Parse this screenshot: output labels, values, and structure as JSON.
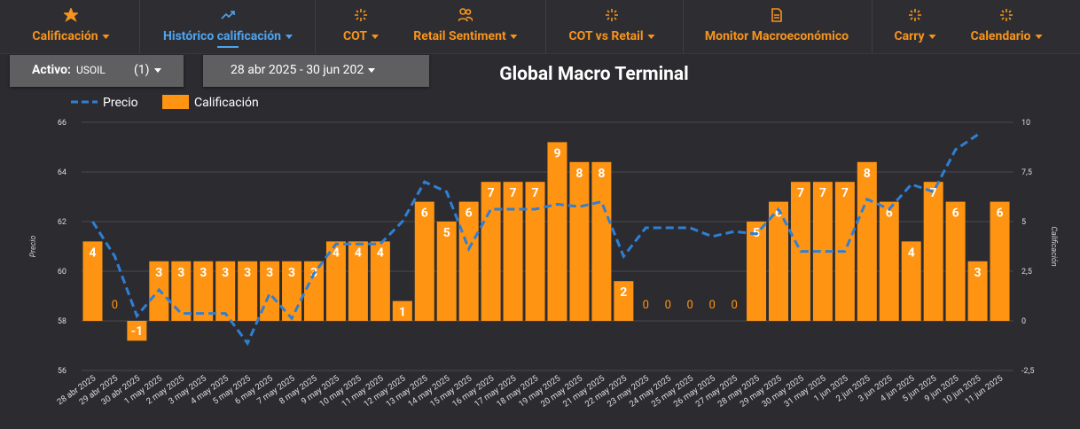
{
  "nav": {
    "items": [
      "Calificación",
      "Histórico calificación",
      "COT",
      "Retail Sentiment",
      "COT vs Retail",
      "Monitor Macroeconómico",
      "Carry",
      "Calendario"
    ]
  },
  "controls": {
    "asset_label": "Activo:",
    "asset": "USOIL",
    "count": "(1)",
    "date_range": "28 abr 2025 - 30 jun 202"
  },
  "chart_data": {
    "type": "combo",
    "title": "Global Macro Terminal",
    "y_label": "Precio",
    "y2_label": "Calificación",
    "categories": [
      "28 abr 2025",
      "29 abr 2025",
      "30 abr 2025",
      "1 may 2025",
      "2 may 2025",
      "3 may 2025",
      "4 may 2025",
      "5 may 2025",
      "6 may 2025",
      "7 may 2025",
      "8 may 2025",
      "9 may 2025",
      "10 may 2025",
      "11 may 2025",
      "12 may 2025",
      "13 may 2025",
      "14 may 2025",
      "15 may 2025",
      "16 may 2025",
      "17 may 2025",
      "18 may 2025",
      "19 may 2025",
      "20 may 2025",
      "21 may 2025",
      "22 may 2025",
      "23 may 2025",
      "24 may 2025",
      "25 may 2025",
      "26 may 2025",
      "27 may 2025",
      "28 may 2025",
      "29 may 2025",
      "30 may 2025",
      "31 may 2025",
      "1 jun 2025",
      "2 jun 2025",
      "3 jun 2025",
      "4 jun 2025",
      "5 jun 2025",
      "9 jun 2025",
      "10 jun 2025",
      "11 jun 2025"
    ],
    "series": [
      {
        "name": "Precio",
        "type": "line",
        "color": "#2f7fd6",
        "values": [
          62.0,
          60.6,
          58.2,
          59.25,
          58.3,
          58.3,
          58.3,
          57.1,
          59.1,
          58.1,
          59.9,
          61.1,
          61.1,
          61.1,
          62.0,
          63.6,
          63.2,
          60.9,
          62.5,
          62.5,
          62.5,
          62.7,
          62.6,
          62.8,
          60.6,
          61.75,
          61.75,
          61.75,
          61.4,
          61.6,
          61.5,
          62.5,
          60.8,
          60.8,
          60.8,
          62.9,
          62.5,
          63.5,
          63.2,
          64.9,
          65.5,
          null
        ]
      },
      {
        "name": "Calificación",
        "type": "bar",
        "axis": "y2",
        "color": "#ff9412",
        "values": [
          4,
          0,
          -1,
          3,
          3,
          3,
          3,
          3,
          3,
          3,
          3,
          4,
          4,
          4,
          1,
          6,
          5,
          6,
          7,
          7,
          7,
          9,
          8,
          8,
          2,
          0,
          0,
          0,
          0,
          0,
          5,
          6,
          7,
          7,
          7,
          8,
          6,
          4,
          7,
          6,
          3,
          6
        ]
      }
    ],
    "ylim": [
      56,
      66
    ],
    "yticks": [
      56,
      58,
      60,
      62,
      64,
      66
    ],
    "y2lim": [
      -2.5,
      10
    ],
    "y2ticks": [
      {
        "value": -2.5,
        "label": "-2,5"
      },
      0,
      {
        "value": 2.5,
        "label": "2,5"
      },
      5,
      {
        "value": 7.5,
        "label": "7,5"
      },
      10
    ],
    "grid": true,
    "legend": "top-left"
  }
}
